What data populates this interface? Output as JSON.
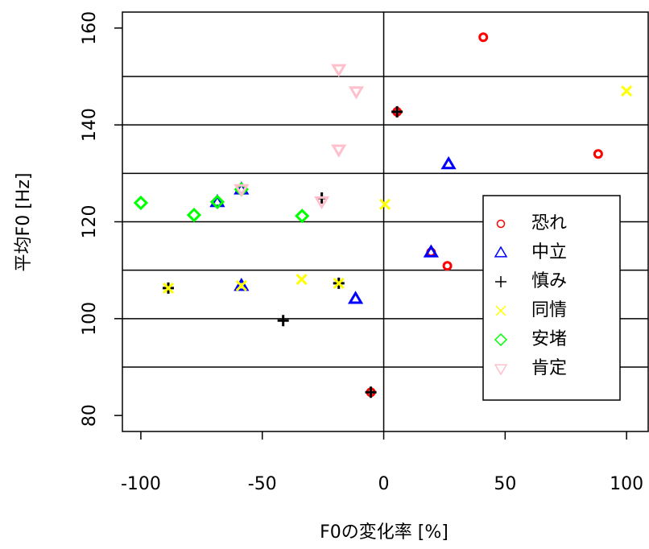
{
  "chart_data": {
    "type": "scatter",
    "x_label": "F0の変化率 [%]",
    "y_label": "平均F0 [Hz]",
    "xlim": [
      -107.6,
      108.9
    ],
    "ylim": [
      76.7,
      163.3
    ],
    "xticks": [
      -100,
      -50,
      0,
      50,
      100
    ],
    "yticks": [
      80,
      100,
      120,
      140,
      160
    ],
    "hlines": [
      90,
      100,
      110,
      120,
      130,
      140,
      150
    ],
    "vlines": [
      0
    ],
    "legend": "right",
    "series": [
      {
        "name": "恐れ",
        "color": "#ff0000",
        "marker": "circle",
        "x": [
          41,
          88.3,
          26.2,
          19.5,
          5.5,
          -5.3
        ],
        "y": [
          158.1,
          134.0,
          110.9,
          113.7,
          142.7,
          84.8
        ]
      },
      {
        "name": "中立",
        "color": "#0000ff",
        "marker": "triangle",
        "x": [
          26.7,
          19.5,
          -11.6,
          -58.6,
          -68.5,
          -58.6
        ],
        "y": [
          131.9,
          113.7,
          104.1,
          106.8,
          124.1,
          126.7
        ]
      },
      {
        "name": "慎み",
        "color": "#000000",
        "marker": "plus",
        "x": [
          5.5,
          -5.3,
          -41.4,
          -88.7,
          -18.5,
          -25.5
        ],
        "y": [
          142.7,
          84.8,
          99.6,
          106.3,
          107.3,
          124.9
        ]
      },
      {
        "name": "同情",
        "color": "#ffff00",
        "marker": "cross",
        "x": [
          100,
          0.5,
          -33.8,
          -88.7,
          -18.5,
          -58.6
        ],
        "y": [
          147.0,
          123.6,
          108.1,
          106.3,
          107.3,
          106.8
        ]
      },
      {
        "name": "安堵",
        "color": "#00ff00",
        "marker": "diamond",
        "x": [
          -100,
          -78.1,
          -68.5,
          -58.6,
          -33.6
        ],
        "y": [
          123.9,
          121.4,
          124.1,
          126.7,
          121.2
        ]
      },
      {
        "name": "肯定",
        "color": "#ffc0cb",
        "marker": "down-triangle",
        "x": [
          -18.5,
          -11.3,
          -18.5,
          -25.5,
          -58.6
        ],
        "y": [
          151.5,
          146.9,
          134.9,
          124.2,
          126.7
        ]
      }
    ]
  }
}
